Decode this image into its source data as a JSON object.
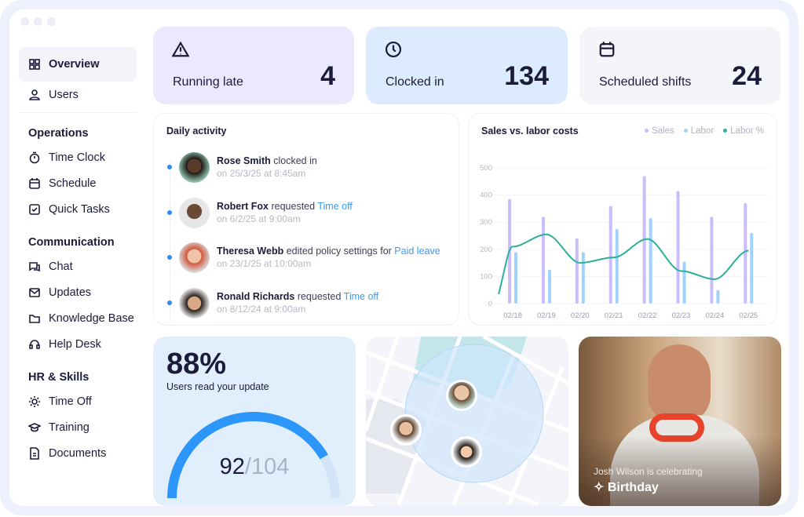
{
  "sidebar": {
    "items": [
      {
        "label": "Overview",
        "icon": "grid-icon"
      },
      {
        "label": "Users",
        "icon": "user-icon"
      }
    ],
    "sections": [
      {
        "title": "Operations",
        "items": [
          {
            "label": "Time Clock",
            "icon": "stopwatch-icon"
          },
          {
            "label": "Schedule",
            "icon": "calendar-icon"
          },
          {
            "label": "Quick Tasks",
            "icon": "checkbox-icon"
          }
        ]
      },
      {
        "title": "Communication",
        "items": [
          {
            "label": "Chat",
            "icon": "chat-icon"
          },
          {
            "label": "Updates",
            "icon": "mail-icon"
          },
          {
            "label": "Knowledge Base",
            "icon": "folder-icon"
          },
          {
            "label": "Help Desk",
            "icon": "headset-icon"
          }
        ]
      },
      {
        "title": "HR & Skills",
        "items": [
          {
            "label": "Time Off",
            "icon": "sun-icon"
          },
          {
            "label": "Training",
            "icon": "graduation-cap-icon"
          },
          {
            "label": "Documents",
            "icon": "document-icon"
          }
        ]
      }
    ]
  },
  "stats": [
    {
      "label": "Running late",
      "value": "4",
      "icon": "warning-icon",
      "color": "#ece8fd"
    },
    {
      "label": "Clocked in",
      "value": "134",
      "icon": "clock-check-icon",
      "color": "#dcebfd"
    },
    {
      "label": "Scheduled shifts",
      "value": "24",
      "icon": "calendar-icon",
      "color": "#f4f5fb"
    }
  ],
  "activity": {
    "title": "Daily activity",
    "items": [
      {
        "name": "Rose Smith",
        "action": "clocked in",
        "link": "",
        "time": "on 25/3/25 at 8:45am"
      },
      {
        "name": "Robert Fox",
        "action": "requested",
        "link": "Time off",
        "time": "on 6/2/25 at 9:00am"
      },
      {
        "name": "Theresa Webb",
        "action": "edited policy settings for",
        "link": "Paid leave",
        "time": "on 23/1/25 at 10:00am"
      },
      {
        "name": "Ronald Richards",
        "action": "requested",
        "link": "Time off",
        "time": "on 8/12/24 at 9:00am"
      }
    ]
  },
  "chart_data": {
    "type": "bar",
    "title": "Sales vs. labor costs",
    "categories": [
      "02/18",
      "02/19",
      "02/20",
      "02/21",
      "02/22",
      "02/23",
      "02/24",
      "02/25"
    ],
    "series": [
      {
        "name": "Sales",
        "type": "bar",
        "color": "#cbbcfb",
        "values": [
          385,
          320,
          240,
          360,
          470,
          415,
          320,
          370
        ]
      },
      {
        "name": "Labor",
        "type": "bar",
        "color": "#9fd2fd",
        "values": [
          190,
          125,
          190,
          275,
          315,
          155,
          50,
          260
        ]
      },
      {
        "name": "Labor %",
        "type": "line",
        "color": "#2bb09a",
        "values": [
          210,
          255,
          150,
          170,
          238,
          120,
          90,
          195
        ]
      }
    ],
    "yticks": [
      0,
      100,
      200,
      300,
      400,
      500
    ],
    "ylim": [
      0,
      500
    ],
    "grid": true,
    "legend": "top-right"
  },
  "update": {
    "percent": "88%",
    "label": "Users read your update",
    "read": "92",
    "total": "/104",
    "fraction": 0.88
  },
  "birthday": {
    "caption": "Josh Wilson is celebrating",
    "title": "Birthday",
    "icon": "party-popper-icon"
  }
}
